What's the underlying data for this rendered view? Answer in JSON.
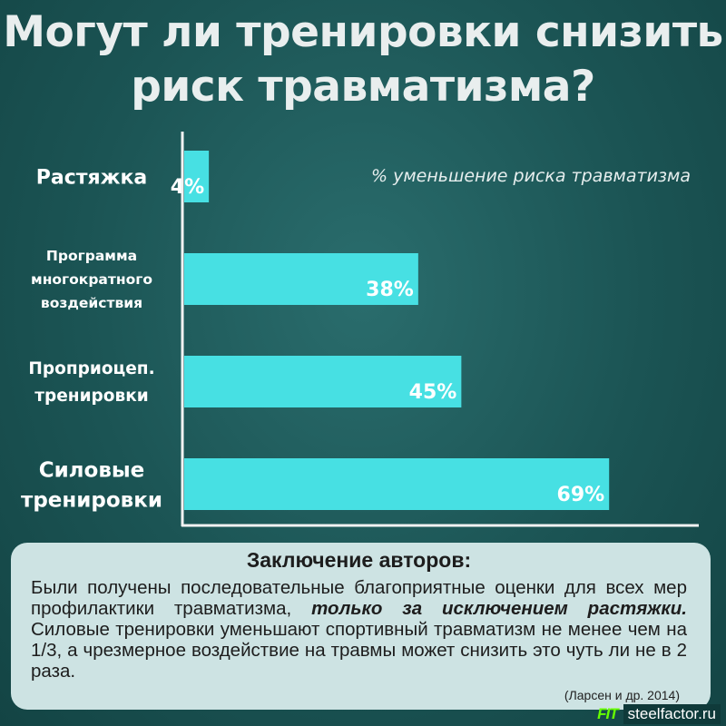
{
  "title": {
    "line1": "Могут ли тренировки снизить",
    "line2": "риск травматизма?"
  },
  "chart_data": {
    "type": "bar",
    "orientation": "horizontal",
    "categories": [
      [
        "Растяжка"
      ],
      [
        "Программа",
        "многократного",
        "воздействия"
      ],
      [
        "Проприоцеп.",
        "тренировки"
      ],
      [
        "Силовые",
        "тренировки"
      ]
    ],
    "values": [
      4,
      38,
      45,
      69
    ],
    "value_labels": [
      "4%",
      "38%",
      "45%",
      "69%"
    ],
    "legend": "% уменьшение риска травматизма",
    "legend_position": "top-right",
    "bar_color": "#47e0e3",
    "grid": false,
    "xlim": [
      0,
      84
    ]
  },
  "conclusion": {
    "title": "Заключение авторов:",
    "text_before": "Были получены последовательные благоприятные оценки для всех мер профилактики травматизма, ",
    "emphasis": "только за исключением растяжки.",
    "text_after": " Силовые тренировки уменьшают спортивный травматизм не менее чем на 1/3, а чрезмерное воздействие на травмы может снизить это чуть ли не в 2 раза.",
    "citation": "(Ларсен и др. 2014)"
  },
  "watermark": {
    "logo": "FIT",
    "site": "steelfactor.ru"
  }
}
